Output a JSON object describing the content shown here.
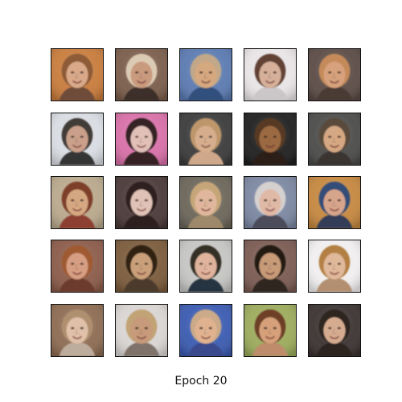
{
  "figure": {
    "caption": "Epoch 20",
    "grid": {
      "rows": 5,
      "cols": 5
    },
    "samples": [
      {
        "bg": "#c77a3a",
        "skin": "#d9a98a",
        "hair": "#8a5a36",
        "shirt": "#6a4a3a"
      },
      {
        "bg": "#7a5c4a",
        "skin": "#c99a7e",
        "hair": "#e0d0b8",
        "shirt": "#3a2b26"
      },
      {
        "bg": "#5a79b0",
        "skin": "#d5a880",
        "hair": "#c6aa86",
        "shirt": "#2f4e7a"
      },
      {
        "bg": "#e8e4e6",
        "skin": "#d6b09a",
        "hair": "#5b3a2a",
        "shirt": "#c9c4c6"
      },
      {
        "bg": "#5a4a44",
        "skin": "#d6a17c",
        "hair": "#c98c58",
        "shirt": "#4a3a34"
      },
      {
        "bg": "#d8dce2",
        "skin": "#caa08a",
        "hair": "#3a3230",
        "shirt": "#2a2a2a"
      },
      {
        "bg": "#d76fa7",
        "skin": "#e1c0b8",
        "hair": "#2b1a1a",
        "shirt": "#2b1a1a"
      },
      {
        "bg": "#3a3a3a",
        "skin": "#d6ae8e",
        "hair": "#c39a6e",
        "shirt": "#d6ae8e"
      },
      {
        "bg": "#1e1e1e",
        "skin": "#9b6a42",
        "hair": "#5a3a22",
        "shirt": "#2a1f18"
      },
      {
        "bg": "#4a4a48",
        "skin": "#d5a783",
        "hair": "#5a4a3a",
        "shirt": "#3a3430"
      },
      {
        "bg": "#b8a78b",
        "skin": "#d6a882",
        "hair": "#7a3a22",
        "shirt": "#8a3a2a"
      },
      {
        "bg": "#4a3838",
        "skin": "#e1c2b6",
        "hair": "#2a1a1a",
        "shirt": "#2a1a1a"
      },
      {
        "bg": "#6a6458",
        "skin": "#e0b79c",
        "hair": "#caa97a",
        "shirt": "#a08a6a"
      },
      {
        "bg": "#7a86a0",
        "skin": "#e0b8a6",
        "hair": "#d9d4d2",
        "shirt": "#4a4a56"
      },
      {
        "bg": "#c4863e",
        "skin": "#d7a58c",
        "hair": "#2a4a7a",
        "shirt": "#2a3a5a"
      },
      {
        "bg": "#8a5a48",
        "skin": "#d69e82",
        "hair": "#a0582e",
        "shirt": "#6a3a2a"
      },
      {
        "bg": "#7a5a3a",
        "skin": "#caa07a",
        "hair": "#2a1a12",
        "shirt": "#4a3a2a"
      },
      {
        "bg": "#c4c4c2",
        "skin": "#e0b49c",
        "hair": "#2a2620",
        "shirt": "#1e2a3a"
      },
      {
        "bg": "#7a5a52",
        "skin": "#c79a78",
        "hair": "#1a1412",
        "shirt": "#2a2220"
      },
      {
        "bg": "#f0eeee",
        "skin": "#e0b89a",
        "hair": "#b07a3a",
        "shirt": "#b08a6a"
      },
      {
        "bg": "#8c6a50",
        "skin": "#e0c0a8",
        "hair": "#b09070",
        "shirt": "#c0b0a0"
      },
      {
        "bg": "#d8d4d2",
        "skin": "#c69a7a",
        "hair": "#c0a070",
        "shirt": "#7a6e64"
      },
      {
        "bg": "#3a5ab0",
        "skin": "#e0b290",
        "hair": "#d2ae86",
        "shirt": "#3a4a8a"
      },
      {
        "bg": "#9aaa5a",
        "skin": "#d6a07a",
        "hair": "#6a3a22",
        "shirt": "#c08a6a"
      },
      {
        "bg": "#3a3230",
        "skin": "#d6ac90",
        "hair": "#2a2220",
        "shirt": "#2a2220"
      }
    ]
  }
}
